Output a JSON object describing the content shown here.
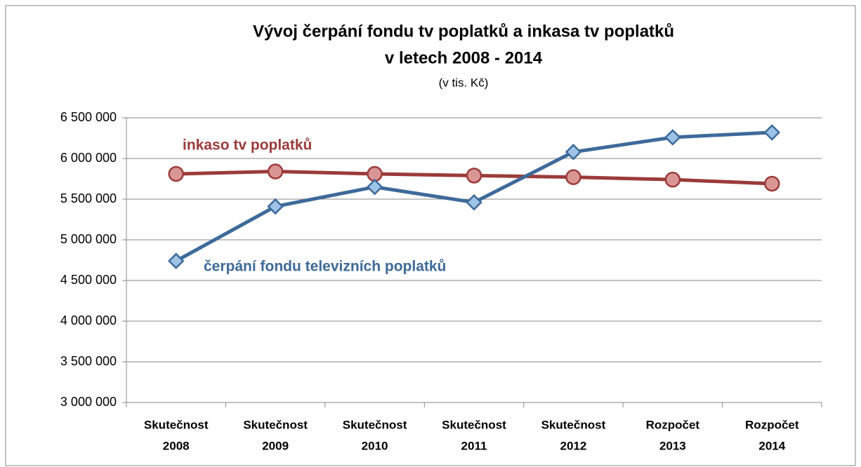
{
  "chart_data": {
    "type": "line",
    "title": [
      "Vývoj čerpání fondu tv poplatků a inkasa tv poplatků",
      "v letech 2008 - 2014"
    ],
    "subtitle": "(v tis. Kč)",
    "categories": [
      [
        "Skutečnost",
        "2008"
      ],
      [
        "Skutečnost",
        "2009"
      ],
      [
        "Skutečnost",
        "2010"
      ],
      [
        "Skutečnost",
        "2011"
      ],
      [
        "Skutečnost",
        "2012"
      ],
      [
        "Rozpočet",
        "2013"
      ],
      [
        "Rozpočet",
        "2014"
      ]
    ],
    "series": [
      {
        "name": "inkaso tv poplatků",
        "color": "#9b3b3a",
        "marker_color": "#d99694",
        "marker": "circle",
        "values": [
          5810000,
          5840000,
          5810000,
          5790000,
          5770000,
          5740000,
          5690000
        ]
      },
      {
        "name": "čerpání fondu televizních poplatků",
        "color": "#3e6a9a",
        "marker_color": "#9dc3e6",
        "marker": "diamond",
        "values": [
          4740000,
          5410000,
          5650000,
          5460000,
          6080000,
          6260000,
          6320000
        ]
      }
    ],
    "ylim": [
      3000000,
      6500000
    ],
    "yticks": [
      {
        "value": 3000000,
        "label": "3 000 000"
      },
      {
        "value": 3500000,
        "label": "3 500 000"
      },
      {
        "value": 4000000,
        "label": "4 000 000"
      },
      {
        "value": 4500000,
        "label": "4 500 000"
      },
      {
        "value": 5000000,
        "label": "5 000 000"
      },
      {
        "value": 5500000,
        "label": "5 500 000"
      },
      {
        "value": 6000000,
        "label": "6 000 000"
      },
      {
        "value": 6500000,
        "label": "6 500 000"
      }
    ],
    "grid": true
  }
}
